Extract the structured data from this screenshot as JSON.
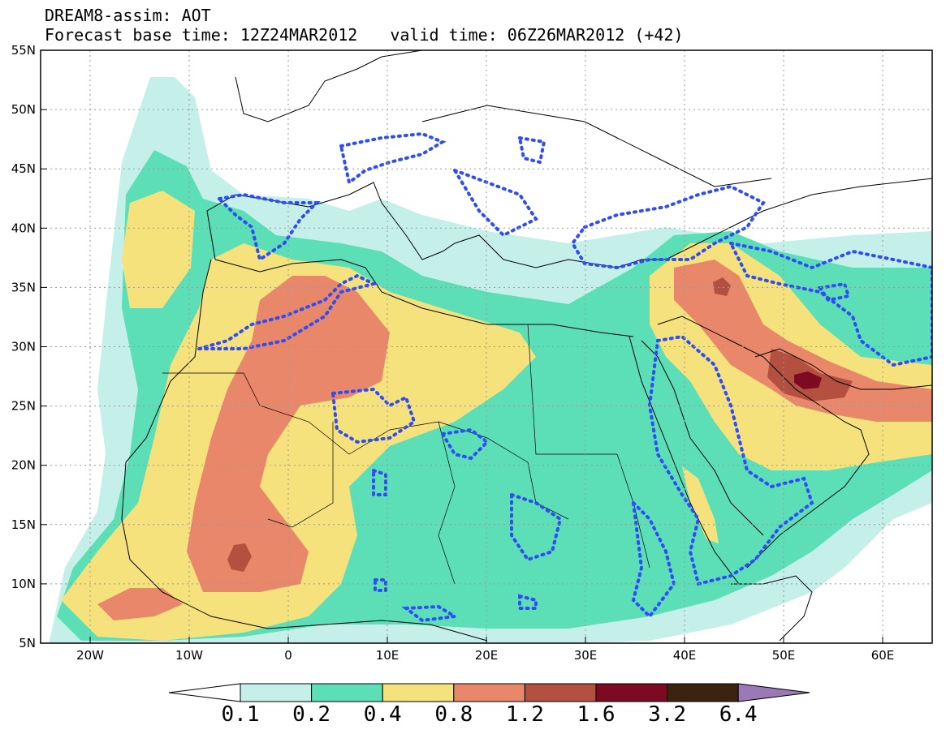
{
  "header": {
    "line1": "DREAM8-assim: AOT",
    "base_time": "Forecast base time: 12Z24MAR2012",
    "valid_time": "valid time: 06Z26MAR2012 (+42)"
  },
  "axes": {
    "lat_labels": [
      "55N",
      "50N",
      "45N",
      "40N",
      "35N",
      "30N",
      "25N",
      "20N",
      "15N",
      "10N",
      "5N"
    ],
    "lon_labels": [
      "20W",
      "10W",
      "0",
      "10E",
      "20E",
      "30E",
      "40E",
      "50E",
      "60E"
    ]
  },
  "colorbar": {
    "labels": [
      "0.1",
      "0.2",
      "0.4",
      "0.8",
      "1.2",
      "1.6",
      "3.2",
      "6.4"
    ],
    "colors": [
      "#c5f0ea",
      "#5cdfb7",
      "#f5e27d",
      "#e8876a",
      "#b3503f",
      "#7b0a22",
      "#3a2410",
      "#9b78b6"
    ]
  },
  "map": {
    "field": "AOT",
    "ocean_color": "#ffffff",
    "land_line_color": "#000000",
    "contour_color": "#2f4cf5",
    "levels_shown": [
      "0.1",
      "0.2",
      "0.4",
      "0.8",
      "1.2",
      "1.6"
    ]
  }
}
